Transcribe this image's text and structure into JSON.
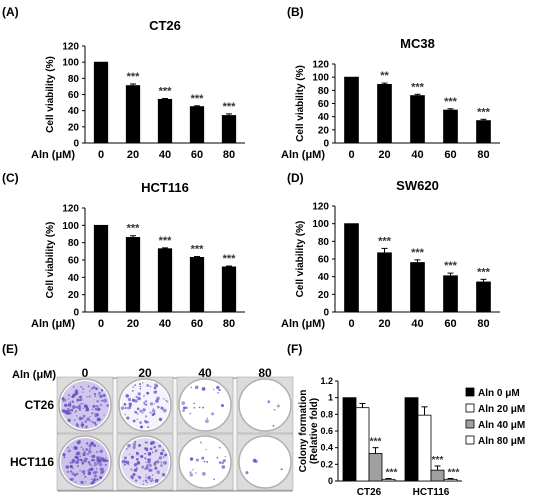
{
  "panels": [
    {
      "letter": "(A)",
      "title": "CT26"
    },
    {
      "letter": "(B)",
      "title": "MC38"
    },
    {
      "letter": "(C)",
      "title": "HCT116"
    },
    {
      "letter": "(D)",
      "title": "SW620"
    },
    {
      "letter": "(E)",
      "title": ""
    },
    {
      "letter": "(F)",
      "title": ""
    }
  ],
  "dose_axis_label": "Aln (μM)",
  "colony_image": {
    "concentration_label": "Aln (μM)",
    "concentrations": [
      "0",
      "20",
      "40",
      "80"
    ],
    "rows": [
      "CT26",
      "HCT116"
    ],
    "dish_colony_density": [
      [
        0.9,
        0.55,
        0.15,
        0.03
      ],
      [
        0.95,
        0.75,
        0.15,
        0.03
      ]
    ],
    "dish_stain_color": "#6a4fc2"
  },
  "chart_data": [
    {
      "type": "bar",
      "panel": "(A)",
      "title": "CT26",
      "xlabel": "Aln (μM)",
      "ylabel": "Cell viability (%)",
      "categories": [
        "0",
        "20",
        "40",
        "60",
        "80"
      ],
      "values": [
        100,
        71,
        54,
        45,
        34
      ],
      "errors": [
        0,
        2,
        1,
        1,
        2
      ],
      "significance": [
        "",
        "***",
        "***",
        "***",
        "***"
      ],
      "ylim": [
        0,
        120
      ],
      "yticks": [
        0,
        20,
        40,
        60,
        80,
        100,
        120
      ],
      "bar_color": "#000000",
      "grid": false
    },
    {
      "type": "bar",
      "panel": "(B)",
      "title": "MC38",
      "xlabel": "Aln (μM)",
      "ylabel": "Cell viability (%)",
      "categories": [
        "0",
        "20",
        "40",
        "60",
        "80"
      ],
      "values": [
        100,
        89,
        72,
        50,
        34
      ],
      "errors": [
        0,
        2,
        2,
        2,
        2
      ],
      "significance": [
        "",
        "**",
        "***",
        "***",
        "***"
      ],
      "ylim": [
        0,
        120
      ],
      "yticks": [
        0,
        20,
        40,
        60,
        80,
        100,
        120
      ],
      "bar_color": "#000000",
      "grid": false
    },
    {
      "type": "bar",
      "panel": "(C)",
      "title": "HCT116",
      "xlabel": "Aln (μM)",
      "ylabel": "Cell viability (%)",
      "categories": [
        "0",
        "20",
        "40",
        "60",
        "80"
      ],
      "values": [
        100,
        86,
        73,
        63,
        52
      ],
      "errors": [
        0,
        2,
        1,
        1,
        1
      ],
      "significance": [
        "",
        "***",
        "***",
        "***",
        "***"
      ],
      "ylim": [
        0,
        120
      ],
      "yticks": [
        0,
        20,
        40,
        60,
        80,
        100,
        120
      ],
      "bar_color": "#000000",
      "grid": false
    },
    {
      "type": "bar",
      "panel": "(D)",
      "title": "SW620",
      "xlabel": "Aln (μM)",
      "ylabel": "Cell viability (%)",
      "categories": [
        "0",
        "20",
        "40",
        "60",
        "80"
      ],
      "values": [
        100,
        67,
        56,
        41,
        34
      ],
      "errors": [
        0,
        5,
        3,
        3,
        3
      ],
      "significance": [
        "",
        "***",
        "***",
        "***",
        "***"
      ],
      "ylim": [
        0,
        120
      ],
      "yticks": [
        0,
        20,
        40,
        60,
        80,
        100,
        120
      ],
      "bar_color": "#000000",
      "grid": false
    },
    {
      "type": "bar",
      "panel": "(F)",
      "title": "",
      "xlabel": "",
      "ylabel": "Colony formation (Relative fold)",
      "categories": [
        "CT26",
        "HCT116"
      ],
      "series": [
        {
          "name": "Aln 0 μM",
          "values": [
            1.0,
            1.0
          ],
          "errors": [
            0,
            0
          ],
          "color": "#000000",
          "significance": [
            "",
            ""
          ]
        },
        {
          "name": "Aln 20 μM",
          "values": [
            0.88,
            0.79
          ],
          "errors": [
            0.05,
            0.1
          ],
          "color": "#ffffff",
          "significance": [
            "",
            ""
          ]
        },
        {
          "name": "Aln 40 μM",
          "values": [
            0.33,
            0.13
          ],
          "errors": [
            0.07,
            0.05
          ],
          "color": "#a0a0a0",
          "significance": [
            "***",
            "***"
          ]
        },
        {
          "name": "Aln 80 μM",
          "values": [
            0.02,
            0.02
          ],
          "errors": [
            0.01,
            0.01
          ],
          "color": "#ffffff",
          "significance": [
            "***",
            "***"
          ]
        }
      ],
      "ylim": [
        0,
        1.2
      ],
      "yticks": [
        0,
        0.2,
        0.4,
        0.6,
        0.8,
        1,
        1.2
      ],
      "legend_position": "right",
      "grid": false
    }
  ]
}
